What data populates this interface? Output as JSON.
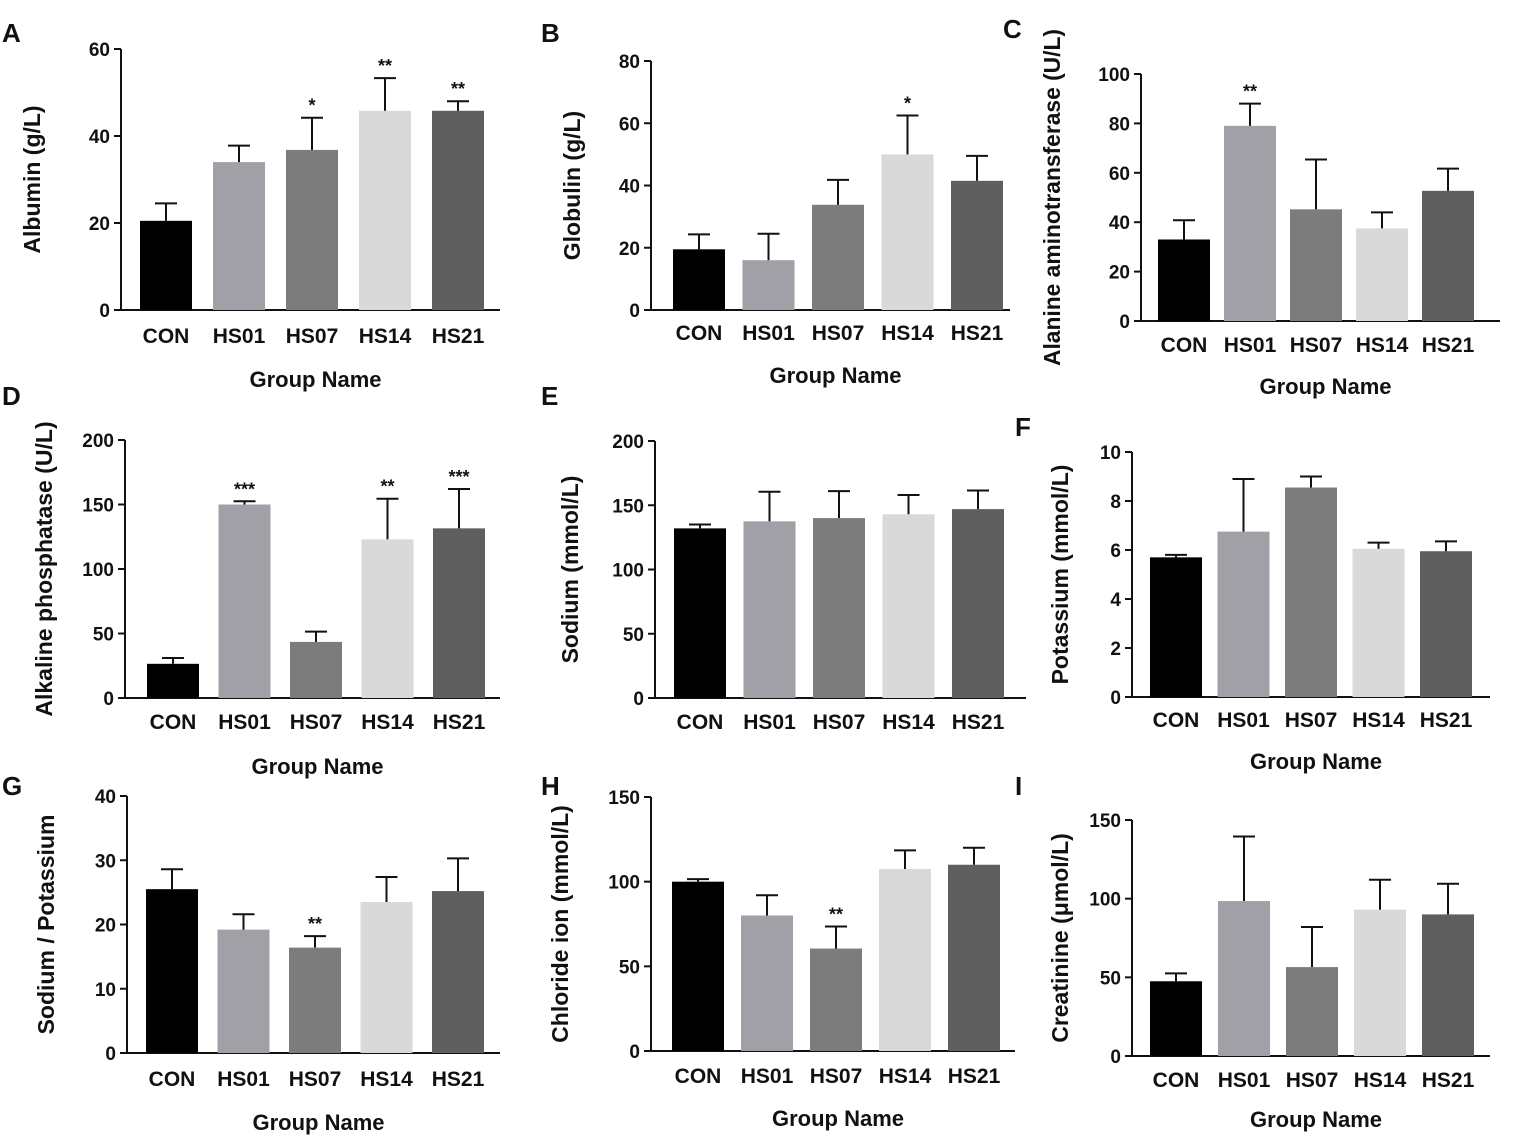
{
  "chart_data": [
    {
      "panel": "A",
      "type": "bar",
      "categories": [
        "CON",
        "HS01",
        "HS07",
        "HS14",
        "HS21"
      ],
      "values": [
        20.5,
        34,
        36.8,
        45.8,
        45.8
      ],
      "errors": [
        4,
        3.8,
        7.4,
        7.5,
        2.2
      ],
      "significance": [
        "",
        "",
        "*",
        "**",
        "**"
      ],
      "colors": [
        "#000000",
        "#a0a0a6",
        "#7c7c7c",
        "#d9d9d9",
        "#5f5f5f"
      ],
      "xlabel": "Group Name",
      "ylabel": "Albumin (g/L)",
      "ylim": [
        0,
        60
      ],
      "yticks": [
        "0",
        "20",
        "40",
        "60"
      ]
    },
    {
      "panel": "B",
      "type": "bar",
      "categories": [
        "CON",
        "HS01",
        "HS07",
        "HS14",
        "HS21"
      ],
      "values": [
        19.5,
        16,
        33.8,
        50,
        41.5
      ],
      "errors": [
        4.8,
        8.5,
        8,
        12.5,
        8
      ],
      "significance": [
        "",
        "",
        "",
        "*",
        ""
      ],
      "colors": [
        "#000000",
        "#a0a0a6",
        "#7c7c7c",
        "#d9d9d9",
        "#5f5f5f"
      ],
      "xlabel": "Group Name",
      "ylabel": "Globulin (g/L)",
      "ylim": [
        0,
        80
      ],
      "yticks": [
        "0",
        "20",
        "40",
        "60",
        "80"
      ]
    },
    {
      "panel": "C",
      "type": "bar",
      "categories": [
        "CON",
        "HS01",
        "HS07",
        "HS14",
        "HS21"
      ],
      "values": [
        33,
        79,
        45.2,
        37.5,
        52.7
      ],
      "errors": [
        7.8,
        9,
        20.2,
        6.5,
        9
      ],
      "significance": [
        "",
        "**",
        "",
        "",
        ""
      ],
      "colors": [
        "#000000",
        "#a0a0a6",
        "#7c7c7c",
        "#d9d9d9",
        "#5f5f5f"
      ],
      "xlabel": "Group Name",
      "ylabel": "Alanine aminotransferase (U/L)",
      "ylim": [
        0,
        100
      ],
      "yticks": [
        "0",
        "20",
        "40",
        "60",
        "80",
        "100"
      ]
    },
    {
      "panel": "D",
      "type": "bar",
      "categories": [
        "CON",
        "HS01",
        "HS07",
        "HS14",
        "HS21"
      ],
      "values": [
        26.5,
        150,
        43.5,
        123,
        131.5
      ],
      "errors": [
        4.5,
        2.5,
        8,
        31.5,
        30.5
      ],
      "significance": [
        "",
        "***",
        "",
        "**",
        "***"
      ],
      "colors": [
        "#000000",
        "#a0a0a6",
        "#7c7c7c",
        "#d9d9d9",
        "#5f5f5f"
      ],
      "xlabel": "Group Name",
      "ylabel": "Alkaline phosphatase (U/L)",
      "ylim": [
        0,
        200
      ],
      "yticks": [
        "0",
        "50",
        "100",
        "150",
        "200"
      ]
    },
    {
      "panel": "E",
      "type": "bar",
      "categories": [
        "CON",
        "HS01",
        "HS07",
        "HS14",
        "HS21"
      ],
      "values": [
        132,
        137.5,
        140,
        143,
        147
      ],
      "errors": [
        3,
        23,
        21,
        15,
        14.5
      ],
      "significance": [
        "",
        "",
        "",
        "",
        ""
      ],
      "colors": [
        "#000000",
        "#a0a0a6",
        "#7c7c7c",
        "#d9d9d9",
        "#5f5f5f"
      ],
      "xlabel": "",
      "ylabel": "Sodium (mmol/L)",
      "ylim": [
        0,
        200
      ],
      "yticks": [
        "0",
        "50",
        "100",
        "150",
        "200"
      ]
    },
    {
      "panel": "F",
      "type": "bar",
      "categories": [
        "CON",
        "HS01",
        "HS07",
        "HS14",
        "HS21"
      ],
      "values": [
        5.7,
        6.75,
        8.55,
        6.05,
        5.95
      ],
      "errors": [
        0.1,
        2.15,
        0.45,
        0.25,
        0.4
      ],
      "significance": [
        "",
        "",
        "",
        "",
        ""
      ],
      "colors": [
        "#000000",
        "#a0a0a6",
        "#7c7c7c",
        "#d9d9d9",
        "#5f5f5f"
      ],
      "xlabel": "Group Name",
      "ylabel": "Potassium (mmol/L)",
      "ylim": [
        0,
        10
      ],
      "yticks": [
        "0",
        "2",
        "4",
        "6",
        "8",
        "10"
      ]
    },
    {
      "panel": "G",
      "type": "bar",
      "categories": [
        "CON",
        "HS01",
        "HS07",
        "HS14",
        "HS21"
      ],
      "values": [
        25.5,
        19.2,
        16.4,
        23.5,
        25.2
      ],
      "errors": [
        3.1,
        2.4,
        1.8,
        3.9,
        5.1
      ],
      "significance": [
        "",
        "",
        "**",
        "",
        ""
      ],
      "colors": [
        "#000000",
        "#a0a0a6",
        "#7c7c7c",
        "#d9d9d9",
        "#5f5f5f"
      ],
      "xlabel": "Group Name",
      "ylabel": "Sodium / Potassium",
      "ylim": [
        0,
        40
      ],
      "yticks": [
        "0",
        "10",
        "20",
        "30",
        "40"
      ]
    },
    {
      "panel": "H",
      "type": "bar",
      "categories": [
        "CON",
        "HS01",
        "HS07",
        "HS14",
        "HS21"
      ],
      "values": [
        100,
        80,
        60.5,
        107.5,
        110
      ],
      "errors": [
        1.5,
        12,
        13,
        11,
        10
      ],
      "significance": [
        "",
        "",
        "**",
        "",
        ""
      ],
      "colors": [
        "#000000",
        "#a0a0a6",
        "#7c7c7c",
        "#d9d9d9",
        "#5f5f5f"
      ],
      "xlabel": "Group Name",
      "ylabel": "Chloride ion (mmol/L)",
      "ylim": [
        0,
        150
      ],
      "yticks": [
        "0",
        "50",
        "100",
        "150"
      ]
    },
    {
      "panel": "I",
      "type": "bar",
      "categories": [
        "CON",
        "HS01",
        "HS07",
        "HS14",
        "HS21"
      ],
      "values": [
        47.5,
        98.5,
        56.5,
        93,
        90
      ],
      "errors": [
        5,
        41,
        25.5,
        19,
        19.5
      ],
      "significance": [
        "",
        "",
        "",
        "",
        ""
      ],
      "colors": [
        "#000000",
        "#a0a0a6",
        "#7c7c7c",
        "#d9d9d9",
        "#5f5f5f"
      ],
      "xlabel": "Group Name",
      "ylabel": "Creatinine (μmol/L)",
      "ylim": [
        0,
        150
      ],
      "yticks": [
        "0",
        "50",
        "100",
        "150"
      ]
    }
  ]
}
